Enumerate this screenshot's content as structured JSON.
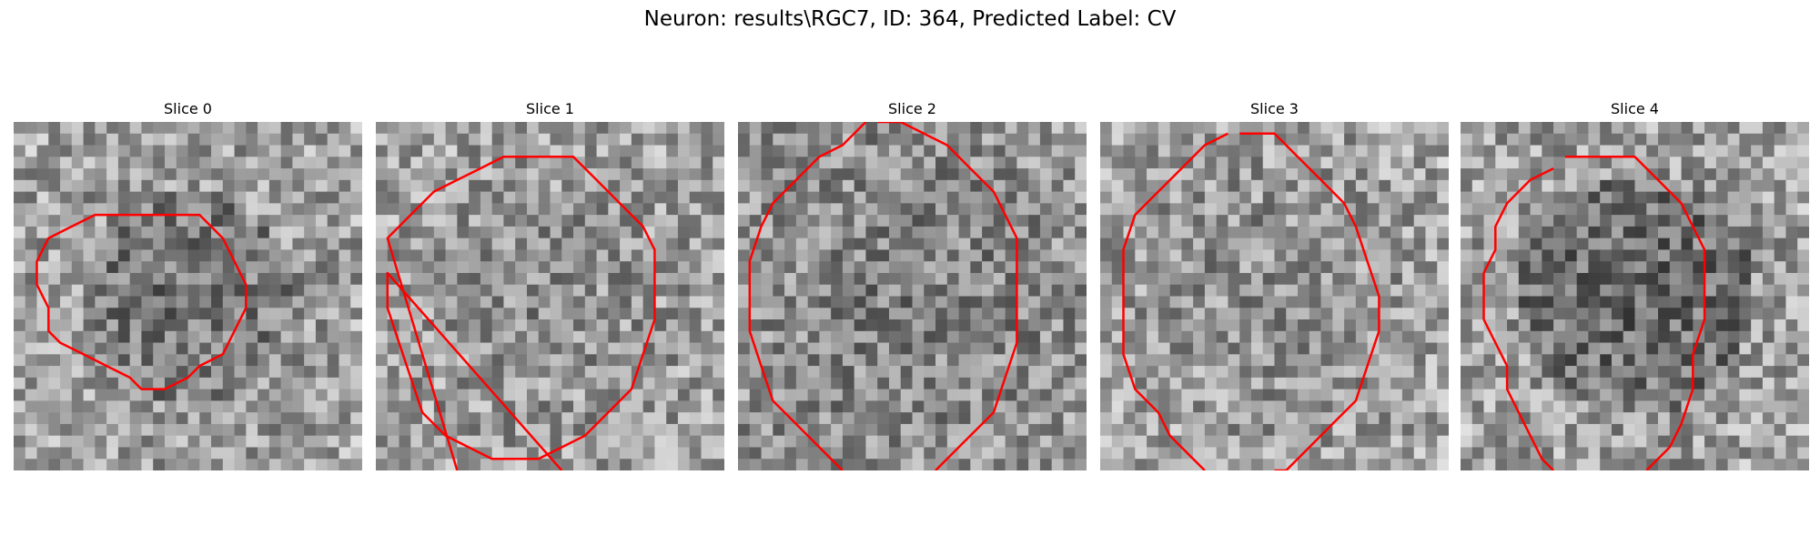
{
  "figure": {
    "title": "Neuron: results\\RGC7, ID: 364, Predicted Label: CV"
  },
  "contour_color": "#ff0000",
  "panels": [
    {
      "title": "Slice 0",
      "contour": [
        [
          13,
          8
        ],
        [
          16,
          8
        ],
        [
          18,
          10
        ],
        [
          19,
          12
        ],
        [
          20,
          14
        ],
        [
          20,
          16
        ],
        [
          19,
          18
        ],
        [
          18,
          20
        ],
        [
          16,
          21
        ],
        [
          15,
          22
        ],
        [
          13,
          23
        ],
        [
          11,
          23
        ],
        [
          10,
          22
        ],
        [
          8,
          21
        ],
        [
          6,
          20
        ],
        [
          4,
          19
        ],
        [
          3,
          18
        ],
        [
          3,
          16
        ],
        [
          2,
          14
        ],
        [
          2,
          12
        ],
        [
          3,
          10
        ],
        [
          5,
          9
        ],
        [
          7,
          8
        ],
        [
          9,
          8
        ],
        [
          11,
          8
        ]
      ],
      "closed": true,
      "seed": 11
    },
    {
      "title": "Slice 1",
      "contour": [
        [
          1,
          10
        ],
        [
          3,
          8
        ],
        [
          5,
          6
        ],
        [
          7,
          5
        ],
        [
          9,
          4
        ],
        [
          11,
          3
        ],
        [
          14,
          3
        ],
        [
          17,
          3
        ],
        [
          19,
          5
        ],
        [
          21,
          7
        ],
        [
          23,
          9
        ],
        [
          24,
          11
        ],
        [
          24,
          14
        ],
        [
          24,
          17
        ],
        [
          23,
          20
        ],
        [
          22,
          23
        ],
        [
          20,
          25
        ],
        [
          18,
          27
        ],
        [
          16,
          28
        ],
        [
          14,
          29
        ],
        [
          12,
          29
        ],
        [
          10,
          29
        ],
        [
          8,
          28
        ],
        [
          6,
          27
        ],
        [
          4,
          25
        ],
        [
          3,
          22
        ],
        [
          2,
          19
        ],
        [
          1,
          16
        ],
        [
          1,
          13
        ]
      ],
      "closed": false,
      "open_start": [
        7,
        30
      ],
      "open_end": [
        16,
        30
      ],
      "seed": 23
    },
    {
      "title": "Slice 2",
      "contour": [
        [
          12,
          0
        ],
        [
          14,
          0
        ],
        [
          16,
          1
        ],
        [
          18,
          2
        ],
        [
          20,
          4
        ],
        [
          22,
          6
        ],
        [
          23,
          8
        ],
        [
          24,
          10
        ],
        [
          24,
          13
        ],
        [
          24,
          16
        ],
        [
          24,
          19
        ],
        [
          23,
          22
        ],
        [
          22,
          25
        ],
        [
          20,
          27
        ],
        [
          18,
          29
        ],
        [
          17,
          30
        ]
      ],
      "contour2": [
        [
          11,
          0
        ],
        [
          9,
          2
        ],
        [
          7,
          3
        ],
        [
          5,
          5
        ],
        [
          3,
          7
        ],
        [
          2,
          9
        ],
        [
          1,
          12
        ],
        [
          1,
          15
        ],
        [
          1,
          18
        ],
        [
          2,
          21
        ],
        [
          3,
          24
        ],
        [
          5,
          26
        ],
        [
          7,
          28
        ],
        [
          9,
          30
        ]
      ],
      "closed": false,
      "seed": 37
    },
    {
      "title": "Slice 3",
      "contour": [
        [
          12,
          1
        ],
        [
          15,
          1
        ],
        [
          17,
          3
        ],
        [
          19,
          5
        ],
        [
          21,
          7
        ],
        [
          22,
          9
        ],
        [
          23,
          12
        ],
        [
          24,
          15
        ],
        [
          24,
          18
        ],
        [
          23,
          21
        ],
        [
          22,
          24
        ],
        [
          20,
          26
        ],
        [
          18,
          28
        ],
        [
          16,
          30
        ],
        [
          15,
          30
        ]
      ],
      "contour2": [
        [
          11,
          1
        ],
        [
          9,
          2
        ],
        [
          7,
          4
        ],
        [
          5,
          6
        ],
        [
          3,
          8
        ],
        [
          2,
          11
        ],
        [
          2,
          14
        ],
        [
          2,
          17
        ],
        [
          2,
          20
        ],
        [
          3,
          23
        ],
        [
          5,
          25
        ],
        [
          6,
          27
        ],
        [
          8,
          29
        ],
        [
          9,
          30
        ]
      ],
      "closed": false,
      "seed": 51
    },
    {
      "title": "Slice 4",
      "contour": [
        [
          9,
          3
        ],
        [
          12,
          3
        ],
        [
          15,
          3
        ],
        [
          17,
          5
        ],
        [
          19,
          7
        ],
        [
          20,
          9
        ],
        [
          21,
          11
        ],
        [
          21,
          14
        ],
        [
          21,
          17
        ],
        [
          20,
          20
        ],
        [
          20,
          23
        ],
        [
          19,
          26
        ],
        [
          18,
          28
        ],
        [
          17,
          29
        ],
        [
          16,
          30
        ]
      ],
      "contour2": [
        [
          8,
          4
        ],
        [
          6,
          5
        ],
        [
          4,
          7
        ],
        [
          3,
          9
        ],
        [
          3,
          11
        ],
        [
          2,
          13
        ],
        [
          2,
          15
        ],
        [
          2,
          17
        ],
        [
          3,
          19
        ],
        [
          4,
          21
        ],
        [
          4,
          23
        ],
        [
          5,
          25
        ],
        [
          6,
          27
        ],
        [
          7,
          29
        ],
        [
          8,
          30
        ]
      ],
      "closed": false,
      "seed": 67
    }
  ]
}
